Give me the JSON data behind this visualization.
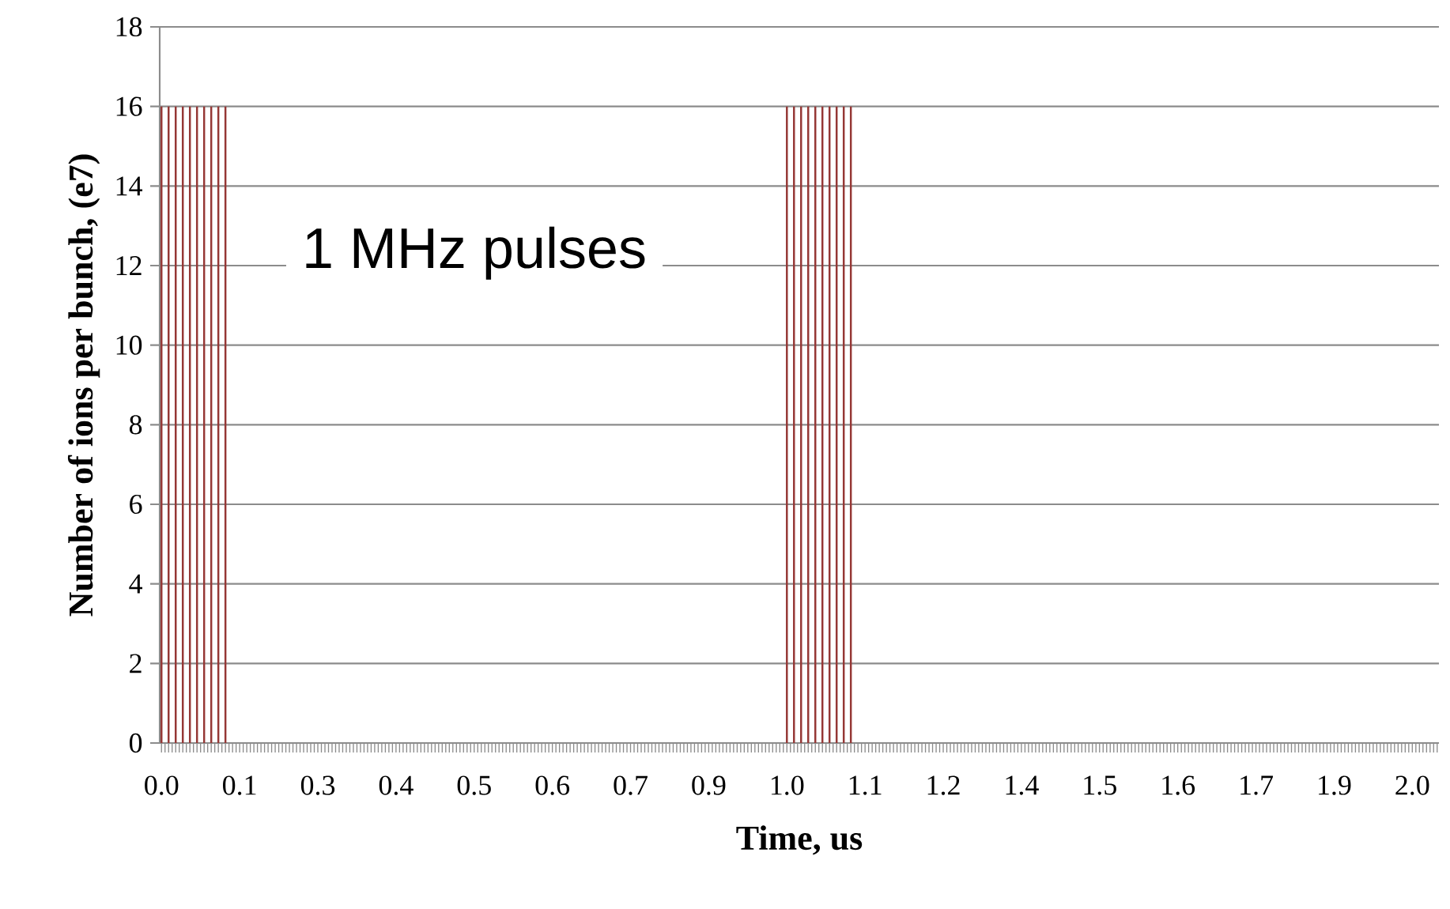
{
  "chart_data": {
    "type": "bar",
    "xlabel": "Time, us",
    "ylabel": "Number of ions per bunch, (e7)",
    "annotations": [
      "1 MHz pulses"
    ],
    "color": "#953735",
    "ylim": [
      0,
      18
    ],
    "yticks": [
      0,
      2,
      4,
      6,
      8,
      10,
      12,
      14,
      16,
      18
    ],
    "grid": "y",
    "categories": [
      "0.0",
      null,
      null,
      null,
      null,
      null,
      null,
      null,
      null,
      null,
      null,
      null,
      null,
      null,
      null,
      null,
      null,
      null,
      null,
      null,
      null,
      null,
      "0.1",
      null,
      null,
      null,
      null,
      null,
      null,
      null,
      null,
      null,
      null,
      null,
      null,
      null,
      null,
      null,
      null,
      null,
      null,
      null,
      null,
      null,
      "0.3",
      null,
      null,
      null,
      null,
      null,
      null,
      null,
      null,
      null,
      null,
      null,
      null,
      null,
      null,
      null,
      null,
      null,
      null,
      null,
      null,
      null,
      "0.4",
      null,
      null,
      null,
      null,
      null,
      null,
      null,
      null,
      null,
      null,
      null,
      null,
      null,
      null,
      null,
      null,
      null,
      null,
      null,
      null,
      null,
      "0.5",
      null,
      null,
      null,
      null,
      null,
      null,
      null,
      null,
      null,
      null,
      null,
      null,
      null,
      null,
      null,
      null,
      null,
      null,
      null,
      null,
      null,
      "0.6",
      null,
      null,
      null,
      null,
      null,
      null,
      null,
      null,
      null,
      null,
      null,
      null,
      null,
      null,
      null,
      null,
      null,
      null,
      null,
      null,
      null,
      "0.7",
      null,
      null,
      null,
      null,
      null,
      null,
      null,
      null,
      null,
      null,
      null,
      null,
      null,
      null,
      null,
      null,
      null,
      null,
      null,
      null,
      null,
      "0.9",
      null,
      null,
      null,
      null,
      null,
      null,
      null,
      null,
      null,
      null,
      null,
      null,
      null,
      null,
      null,
      null,
      null,
      null,
      null,
      null,
      null,
      "1.0",
      null,
      null,
      null,
      null,
      null,
      null,
      null,
      null,
      null,
      null,
      null,
      null,
      null,
      null,
      null,
      null,
      null,
      null,
      null,
      null,
      null,
      "1.1",
      null,
      null,
      null,
      null,
      null,
      null,
      null,
      null,
      null,
      null,
      null,
      null,
      null,
      null,
      null,
      null,
      null,
      null,
      null,
      null,
      null,
      "1.2",
      null,
      null,
      null,
      null,
      null,
      null,
      null,
      null,
      null,
      null,
      null,
      null,
      null,
      null,
      null,
      null,
      null,
      null,
      null,
      null,
      null,
      "1.4",
      null,
      null,
      null,
      null,
      null,
      null,
      null,
      null,
      null,
      null,
      null,
      null,
      null,
      null,
      null,
      null,
      null,
      null,
      null,
      null,
      null,
      "1.5",
      null,
      null,
      null,
      null,
      null,
      null,
      null,
      null,
      null,
      null,
      null,
      null,
      null,
      null,
      null,
      null,
      null,
      null,
      null,
      null,
      null,
      "1.6",
      null,
      null,
      null,
      null,
      null,
      null,
      null,
      null,
      null,
      null,
      null,
      null,
      null,
      null,
      null,
      null,
      null,
      null,
      null,
      null,
      null,
      "1.7",
      null,
      null,
      null,
      null,
      null,
      null,
      null,
      null,
      null,
      null,
      null,
      null,
      null,
      null,
      null,
      null,
      null,
      null,
      null,
      null,
      null,
      "1.9",
      null,
      null,
      null,
      null,
      null,
      null,
      null,
      null,
      null,
      null,
      null,
      null,
      null,
      null,
      null,
      null,
      null,
      null,
      null,
      null,
      null,
      "2.0",
      null,
      null,
      null,
      null,
      null,
      null,
      null
    ],
    "values": [
      16,
      0,
      16,
      0,
      16,
      0,
      16,
      0,
      16,
      0,
      16,
      0,
      16,
      0,
      16,
      0,
      16,
      0,
      16,
      0,
      0,
      0,
      0,
      0,
      0,
      0,
      0,
      0,
      0,
      0,
      0,
      0,
      0,
      0,
      0,
      0,
      0,
      0,
      0,
      0,
      0,
      0,
      0,
      0,
      0,
      0,
      0,
      0,
      0,
      0,
      0,
      0,
      0,
      0,
      0,
      0,
      0,
      0,
      0,
      0,
      0,
      0,
      0,
      0,
      0,
      0,
      0,
      0,
      0,
      0,
      0,
      0,
      0,
      0,
      0,
      0,
      0,
      0,
      0,
      0,
      0,
      0,
      0,
      0,
      0,
      0,
      0,
      0,
      0,
      0,
      0,
      0,
      0,
      0,
      0,
      0,
      0,
      0,
      0,
      0,
      0,
      0,
      0,
      0,
      0,
      0,
      0,
      0,
      0,
      0,
      0,
      0,
      0,
      0,
      0,
      0,
      0,
      0,
      0,
      0,
      0,
      0,
      0,
      0,
      0,
      0,
      0,
      0,
      0,
      0,
      0,
      0,
      0,
      0,
      0,
      0,
      0,
      0,
      0,
      0,
      0,
      0,
      0,
      0,
      0,
      0,
      0,
      0,
      0,
      0,
      0,
      0,
      0,
      0,
      0,
      0,
      0,
      0,
      0,
      0,
      0,
      0,
      0,
      0,
      0,
      0,
      0,
      0,
      0,
      0,
      0,
      0,
      0,
      0,
      0,
      0,
      16,
      0,
      16,
      0,
      16,
      0,
      16,
      0,
      16,
      0,
      16,
      0,
      16,
      0,
      16,
      0,
      16,
      0,
      16,
      0,
      0,
      0,
      0,
      0,
      0,
      0,
      0,
      0,
      0,
      0,
      0,
      0,
      0,
      0,
      0,
      0,
      0,
      0,
      0,
      0,
      0,
      0,
      0,
      0,
      0,
      0,
      0,
      0,
      0,
      0,
      0,
      0,
      0,
      0,
      0,
      0,
      0,
      0,
      0,
      0,
      0,
      0,
      0,
      0,
      0,
      0,
      0,
      0,
      0,
      0,
      0,
      0,
      0,
      0,
      0,
      0,
      0,
      0,
      0,
      0,
      0,
      0,
      0,
      0,
      0,
      0,
      0,
      0,
      0,
      0,
      0,
      0,
      0,
      0,
      0,
      0,
      0,
      0,
      0,
      0,
      0,
      0,
      0,
      0,
      0,
      0,
      0,
      0,
      0,
      0,
      0,
      0,
      0,
      0,
      0,
      0,
      0,
      0,
      0,
      0,
      0,
      0,
      0,
      0,
      0,
      0,
      0,
      0,
      0,
      0,
      0,
      0,
      0,
      0,
      0,
      0,
      0,
      0,
      0,
      0,
      0,
      0,
      0,
      0,
      0,
      0,
      0,
      0,
      0,
      0,
      0,
      0,
      0,
      0,
      0,
      0,
      0,
      0,
      0,
      0,
      0,
      0,
      0,
      0,
      0,
      0,
      0,
      0,
      0,
      0,
      0,
      0,
      0,
      0,
      0,
      0,
      0,
      0,
      0,
      0,
      0,
      0,
      0,
      0
    ]
  }
}
